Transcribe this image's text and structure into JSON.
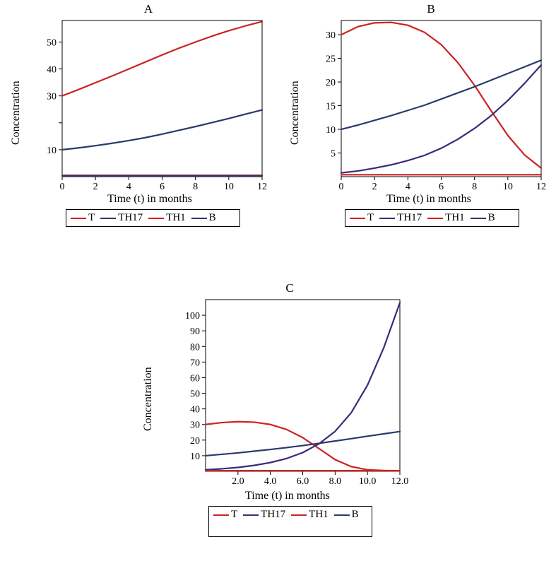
{
  "colors": {
    "red": "#cc2222",
    "darknavy": "#2a3a6a",
    "purple": "#3a2a7a",
    "axis": "#000000",
    "bg": "#ffffff"
  },
  "stroke_width": 2.2,
  "panelA": {
    "title": "A",
    "xlabel": "Time (t) in months",
    "ylabel": "Concentration",
    "xlim": [
      0,
      12
    ],
    "ylim": [
      0,
      58
    ],
    "xticks": [
      0,
      2,
      4,
      6,
      8,
      10,
      12
    ],
    "yticks": [
      10,
      20,
      30,
      40,
      50
    ],
    "yticklabels": [
      "10",
      "",
      "30",
      "40",
      "50"
    ],
    "legend": [
      {
        "label": "T",
        "color": "#cc2222"
      },
      {
        "label": "TH17",
        "color": "#2a3a6a"
      },
      {
        "label": "TH1",
        "color": "#cc2222"
      },
      {
        "label": "B",
        "color": "#2a3a6a"
      }
    ],
    "series": {
      "TH1_upper": {
        "color": "#cc2222",
        "pts": [
          [
            0,
            30.0
          ],
          [
            1,
            32.4
          ],
          [
            2,
            34.9
          ],
          [
            3,
            37.4
          ],
          [
            4,
            40.0
          ],
          [
            5,
            42.6
          ],
          [
            6,
            45.2
          ],
          [
            7,
            47.7
          ],
          [
            8,
            50.0
          ],
          [
            9,
            52.2
          ],
          [
            10,
            54.2
          ],
          [
            11,
            56.0
          ],
          [
            12,
            57.6
          ]
        ]
      },
      "TH17_mid": {
        "color": "#2a3a6a",
        "pts": [
          [
            0,
            10.0
          ],
          [
            1,
            10.7
          ],
          [
            2,
            11.5
          ],
          [
            3,
            12.4
          ],
          [
            4,
            13.4
          ],
          [
            5,
            14.5
          ],
          [
            6,
            15.8
          ],
          [
            7,
            17.2
          ],
          [
            8,
            18.6
          ],
          [
            9,
            20.1
          ],
          [
            10,
            21.6
          ],
          [
            11,
            23.2
          ],
          [
            12,
            24.8
          ]
        ]
      },
      "T_low": {
        "color": "#cc2222",
        "pts": [
          [
            0,
            0.5
          ],
          [
            12,
            0.5
          ]
        ]
      },
      "B_low": {
        "color": "#2a3a6a",
        "pts": [
          [
            0,
            0.3
          ],
          [
            12,
            0.3
          ]
        ]
      }
    }
  },
  "panelB": {
    "title": "B",
    "xlabel": "Time (t) in months",
    "ylabel": "Concentration",
    "xlim": [
      0,
      12
    ],
    "ylim": [
      0,
      33
    ],
    "xticks": [
      0,
      2,
      4,
      6,
      8,
      10,
      12
    ],
    "yticks": [
      5,
      10,
      15,
      20,
      25,
      30
    ],
    "legend": [
      {
        "label": "T",
        "color": "#cc2222"
      },
      {
        "label": "TH17",
        "color": "#3a2a7a"
      },
      {
        "label": "TH1",
        "color": "#cc2222"
      },
      {
        "label": "B",
        "color": "#2a3a6a"
      }
    ],
    "series": {
      "TH1": {
        "color": "#cc2222",
        "pts": [
          [
            0,
            30.0
          ],
          [
            1,
            31.7
          ],
          [
            2,
            32.5
          ],
          [
            3,
            32.6
          ],
          [
            4,
            32.0
          ],
          [
            5,
            30.5
          ],
          [
            6,
            27.9
          ],
          [
            7,
            24.1
          ],
          [
            8,
            19.3
          ],
          [
            9,
            13.9
          ],
          [
            10,
            8.7
          ],
          [
            11,
            4.6
          ],
          [
            12,
            1.8
          ]
        ]
      },
      "B": {
        "color": "#2a3a6a",
        "pts": [
          [
            0,
            10.0
          ],
          [
            1,
            10.9
          ],
          [
            2,
            11.9
          ],
          [
            3,
            12.9
          ],
          [
            4,
            14.0
          ],
          [
            5,
            15.1
          ],
          [
            6,
            16.4
          ],
          [
            7,
            17.7
          ],
          [
            8,
            19.0
          ],
          [
            9,
            20.4
          ],
          [
            10,
            21.8
          ],
          [
            11,
            23.2
          ],
          [
            12,
            24.6
          ]
        ]
      },
      "TH17": {
        "color": "#3a2a7a",
        "pts": [
          [
            0,
            0.8
          ],
          [
            1,
            1.2
          ],
          [
            2,
            1.8
          ],
          [
            3,
            2.5
          ],
          [
            4,
            3.4
          ],
          [
            5,
            4.5
          ],
          [
            6,
            6.0
          ],
          [
            7,
            7.9
          ],
          [
            8,
            10.2
          ],
          [
            9,
            12.9
          ],
          [
            10,
            16.1
          ],
          [
            11,
            19.7
          ],
          [
            12,
            23.6
          ]
        ]
      },
      "T": {
        "color": "#cc2222",
        "pts": [
          [
            0,
            0.4
          ],
          [
            12,
            0.4
          ]
        ]
      }
    }
  },
  "panelC": {
    "title": "C",
    "xlabel": "Time (t) in months",
    "ylabel": "Concentration",
    "xlim": [
      0,
      12
    ],
    "ylim": [
      0,
      110
    ],
    "xticks": [
      2,
      4,
      6,
      8,
      10,
      12
    ],
    "xticklabels": [
      "2.0",
      "4.0",
      "6.0",
      "8.0",
      "10.0",
      "12.0"
    ],
    "yticks": [
      10,
      20,
      30,
      40,
      50,
      60,
      70,
      80,
      90,
      100
    ],
    "legend": [
      {
        "label": "T",
        "color": "#cc2222"
      },
      {
        "label": "TH17",
        "color": "#3a2a7a"
      },
      {
        "label": "TH1",
        "color": "#cc2222"
      },
      {
        "label": "B",
        "color": "#2a3a6a"
      }
    ],
    "series": {
      "TH1": {
        "color": "#cc2222",
        "pts": [
          [
            0,
            30.0
          ],
          [
            1,
            31.2
          ],
          [
            2,
            31.8
          ],
          [
            3,
            31.5
          ],
          [
            4,
            30.0
          ],
          [
            5,
            26.8
          ],
          [
            6,
            21.6
          ],
          [
            7,
            14.6
          ],
          [
            8,
            7.5
          ],
          [
            9,
            3.0
          ],
          [
            10,
            1.0
          ],
          [
            11,
            0.5
          ],
          [
            12,
            0.3
          ]
        ]
      },
      "B": {
        "color": "#2a3a6a",
        "pts": [
          [
            0,
            10.0
          ],
          [
            1,
            10.9
          ],
          [
            2,
            11.8
          ],
          [
            3,
            12.9
          ],
          [
            4,
            14.0
          ],
          [
            5,
            15.2
          ],
          [
            6,
            16.5
          ],
          [
            7,
            17.9
          ],
          [
            8,
            19.4
          ],
          [
            9,
            20.9
          ],
          [
            10,
            22.5
          ],
          [
            11,
            24.0
          ],
          [
            12,
            25.5
          ]
        ]
      },
      "TH17": {
        "color": "#3a2a7a",
        "pts": [
          [
            0,
            1.0
          ],
          [
            1,
            1.6
          ],
          [
            2,
            2.5
          ],
          [
            3,
            3.8
          ],
          [
            4,
            5.6
          ],
          [
            5,
            8.2
          ],
          [
            6,
            12.0
          ],
          [
            7,
            17.6
          ],
          [
            8,
            25.6
          ],
          [
            9,
            37.6
          ],
          [
            10,
            55.2
          ],
          [
            11,
            79.0
          ],
          [
            12,
            108.0
          ]
        ]
      },
      "T": {
        "color": "#cc2222",
        "pts": [
          [
            0,
            0.4
          ],
          [
            12,
            0.4
          ]
        ]
      }
    }
  }
}
